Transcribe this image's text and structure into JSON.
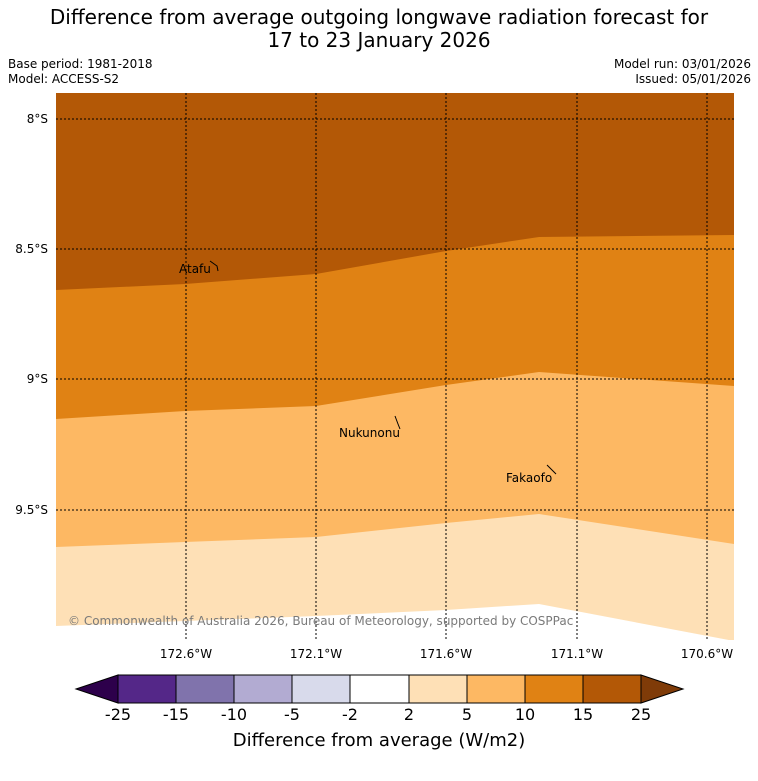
{
  "title_line1": "Difference from average outgoing longwave radiation forecast for",
  "title_line2": "17 to 23 January 2026",
  "base_period": "Base period: 1981-2018",
  "model": "Model: ACCESS-S2",
  "model_run": "Model run: 03/01/2026",
  "issued": "Issued: 05/01/2026",
  "latitudes": [
    "8°S",
    "8.5°S",
    "9°S",
    "9.5°S"
  ],
  "longitudes": [
    "172.6°W",
    "172.1°W",
    "171.6°W",
    "171.1°W",
    "170.6°W"
  ],
  "places": {
    "atafu": "Atafu",
    "nukunonu": "Nukunonu",
    "fakaofo": "Fakaofo"
  },
  "copyright": "© Commonwealth of Australia 2026, Bureau of Meteorology, supported by COSPPac",
  "colorbar": {
    "title": "Difference from average (W/m2)",
    "ticks": [
      "-25",
      "-15",
      "-10",
      "-5",
      "-2",
      "2",
      "5",
      "10",
      "15",
      "25"
    ],
    "colors": {
      "below_min": "#2d004b",
      "b_-25_-15": "#542788",
      "b_-15_-10": "#8073ac",
      "b_-10_-5": "#b2abd2",
      "b_-5_-2": "#d8daeb",
      "b_-2_2": "#ffffff",
      "b_2_5": "#fee0b6",
      "b_5_10": "#fdb863",
      "b_10_15": "#e08214",
      "b_15_25": "#b35806",
      "above_max": "#7f3b08"
    }
  },
  "map_colors": {
    "band_15_25": "#b35806",
    "band_10_15": "#e08214",
    "band_5_10": "#fdb863",
    "band_2_5": "#fee0b6"
  }
}
